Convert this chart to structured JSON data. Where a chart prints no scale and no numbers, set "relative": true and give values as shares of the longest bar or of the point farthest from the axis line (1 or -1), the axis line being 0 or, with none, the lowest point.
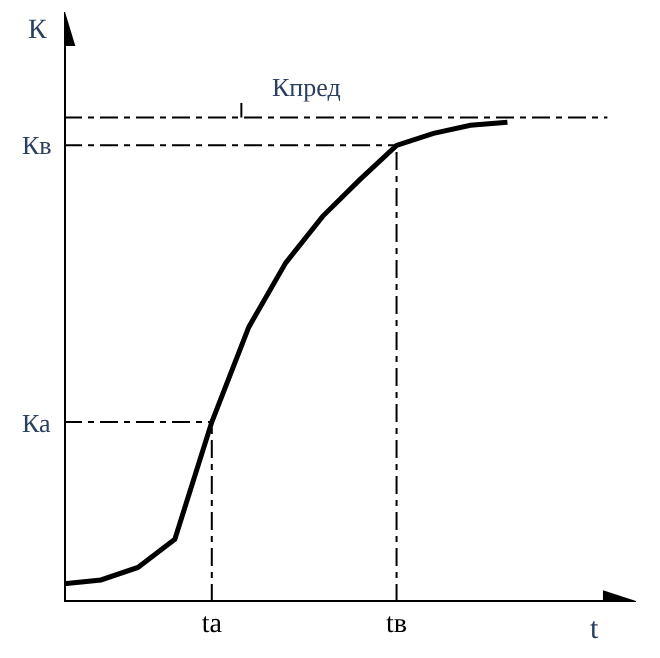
{
  "chart_data": {
    "type": "line",
    "relative": true,
    "xlabel": "t",
    "ylabel": "К",
    "color": "#000000",
    "line_style": "solid",
    "marker": "none",
    "categories": [
      null,
      null,
      null,
      null,
      "tа",
      null,
      null,
      null,
      null,
      "tв",
      null,
      null,
      null
    ],
    "values": [
      0.038,
      0.046,
      0.072,
      0.131,
      0.375,
      0.573,
      0.707,
      0.804,
      0.88,
      0.952,
      0.977,
      0.994,
      1
    ],
    "ref_lines": [
      {
        "axis": "y",
        "value": 1.01,
        "label": "Кпред",
        "line_style": "dashdot"
      },
      {
        "axis": "y",
        "value": 0.952,
        "label": "Кв",
        "line_style": "dashdot"
      },
      {
        "axis": "y",
        "value": 0.375,
        "label": "Ка",
        "line_style": "dashdot"
      },
      {
        "axis": "x",
        "value": "tа",
        "line_style": "dashdot"
      },
      {
        "axis": "x",
        "value": "tв",
        "line_style": "dashdot"
      }
    ]
  }
}
